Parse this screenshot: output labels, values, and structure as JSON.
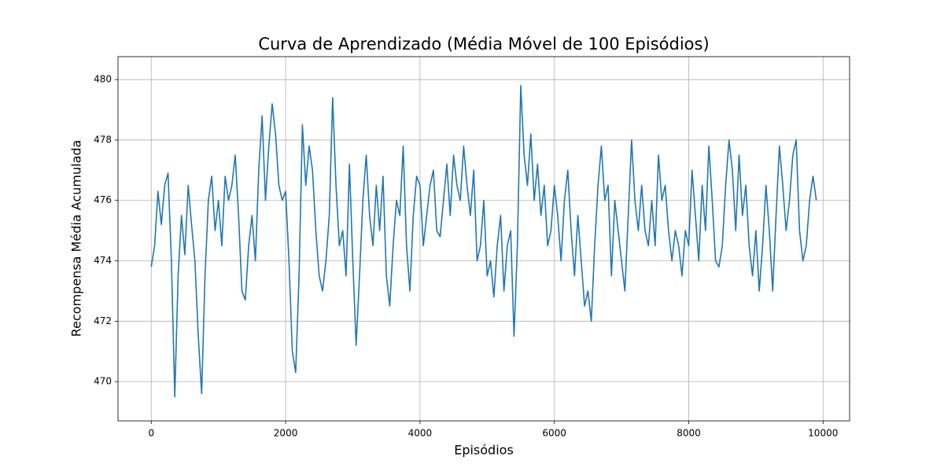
{
  "chart_data": {
    "type": "line",
    "title": "Curva de Aprendizado (Média Móvel de 100 Episódios)",
    "xlabel": "Episódios",
    "ylabel": "Recompensa Média Acumulada",
    "x": [
      0,
      50,
      100,
      150,
      200,
      250,
      300,
      350,
      400,
      450,
      500,
      550,
      600,
      650,
      700,
      750,
      800,
      850,
      900,
      950,
      1000,
      1050,
      1100,
      1150,
      1200,
      1250,
      1300,
      1350,
      1400,
      1450,
      1500,
      1550,
      1600,
      1650,
      1700,
      1750,
      1800,
      1850,
      1900,
      1950,
      2000,
      2050,
      2100,
      2150,
      2200,
      2250,
      2300,
      2350,
      2400,
      2450,
      2500,
      2550,
      2600,
      2650,
      2700,
      2750,
      2800,
      2850,
      2900,
      2950,
      3000,
      3050,
      3100,
      3150,
      3200,
      3250,
      3300,
      3350,
      3400,
      3450,
      3500,
      3550,
      3600,
      3650,
      3700,
      3750,
      3800,
      3850,
      3900,
      3950,
      4000,
      4050,
      4100,
      4150,
      4200,
      4250,
      4300,
      4350,
      4400,
      4450,
      4500,
      4550,
      4600,
      4650,
      4700,
      4750,
      4800,
      4850,
      4900,
      4950,
      5000,
      5050,
      5100,
      5150,
      5200,
      5250,
      5300,
      5350,
      5400,
      5450,
      5500,
      5550,
      5600,
      5650,
      5700,
      5750,
      5800,
      5850,
      5900,
      5950,
      6000,
      6050,
      6100,
      6150,
      6200,
      6250,
      6300,
      6350,
      6400,
      6450,
      6500,
      6550,
      6600,
      6650,
      6700,
      6750,
      6800,
      6850,
      6900,
      6950,
      7000,
      7050,
      7100,
      7150,
      7200,
      7250,
      7300,
      7350,
      7400,
      7450,
      7500,
      7550,
      7600,
      7650,
      7700,
      7750,
      7800,
      7850,
      7900,
      7950,
      8000,
      8050,
      8100,
      8150,
      8200,
      8250,
      8300,
      8350,
      8400,
      8450,
      8500,
      8550,
      8600,
      8650,
      8700,
      8750,
      8800,
      8850,
      8900,
      8950,
      9000,
      9050,
      9100,
      9150,
      9200,
      9250,
      9300,
      9350,
      9400,
      9450,
      9500,
      9550,
      9600,
      9650,
      9700,
      9750,
      9800,
      9850,
      9900
    ],
    "series": [
      {
        "name": "Média Móvel",
        "color": "#1f77b4",
        "values": [
          473.8,
          474.5,
          476.3,
          475.2,
          476.5,
          476.9,
          474.0,
          469.5,
          473.5,
          475.5,
          474.2,
          476.5,
          475.2,
          474.0,
          471.5,
          469.6,
          473.5,
          476.0,
          476.8,
          475.0,
          476.0,
          474.5,
          476.8,
          476.0,
          476.5,
          477.5,
          475.5,
          473.0,
          472.7,
          474.5,
          475.5,
          474.0,
          477.0,
          478.8,
          476.0,
          477.8,
          479.2,
          478.2,
          476.5,
          476.0,
          476.3,
          474.0,
          471.0,
          470.3,
          473.5,
          478.5,
          476.5,
          477.8,
          477.0,
          475.0,
          473.5,
          473.0,
          474.0,
          475.5,
          479.4,
          476.5,
          474.5,
          475.0,
          473.5,
          477.2,
          474.0,
          471.2,
          473.5,
          476.0,
          477.5,
          475.5,
          474.5,
          476.5,
          475.0,
          476.8,
          473.5,
          472.5,
          474.5,
          476.0,
          475.5,
          477.8,
          474.5,
          473.0,
          475.5,
          476.8,
          476.5,
          474.5,
          475.5,
          476.5,
          477.0,
          475.0,
          474.8,
          476.0,
          477.2,
          475.5,
          477.5,
          476.5,
          476.0,
          477.8,
          476.5,
          475.5,
          477.0,
          474.0,
          474.5,
          476.0,
          473.5,
          474.0,
          472.8,
          474.5,
          475.5,
          473.0,
          474.5,
          475.0,
          471.5,
          474.5,
          479.8,
          477.5,
          476.5,
          478.2,
          476.0,
          477.2,
          475.5,
          476.5,
          474.5,
          475.0,
          476.5,
          475.5,
          474.0,
          476.0,
          477.0,
          475.0,
          473.5,
          475.5,
          474.0,
          472.5,
          473.0,
          472.0,
          474.5,
          476.5,
          477.8,
          476.0,
          476.5,
          473.5,
          476.0,
          475.0,
          474.0,
          473.0,
          475.5,
          478.0,
          476.0,
          475.0,
          476.5,
          475.0,
          474.5,
          476.0,
          474.5,
          477.5,
          476.0,
          476.5,
          475.0,
          474.0,
          475.0,
          474.5,
          473.5,
          475.0,
          474.5,
          477.0,
          475.5,
          474.0,
          476.5,
          475.0,
          477.8,
          476.0,
          474.0,
          473.8,
          474.5,
          476.5,
          478.0,
          477.0,
          475.0,
          477.5,
          475.5,
          476.5,
          474.5,
          473.5,
          475.0,
          473.0,
          474.5,
          476.5,
          475.0,
          473.0,
          475.5,
          477.8,
          476.5,
          475.0,
          476.0,
          477.5,
          478.0,
          475.0,
          474.0,
          474.5,
          476.0,
          476.8,
          476.0
        ]
      }
    ],
    "xlim": [
      -495,
      10395
    ],
    "ylim": [
      468.7,
      480.76
    ],
    "xticks": [
      0,
      2000,
      4000,
      6000,
      8000,
      10000
    ],
    "yticks": [
      470,
      472,
      474,
      476,
      478,
      480
    ],
    "grid": true
  }
}
